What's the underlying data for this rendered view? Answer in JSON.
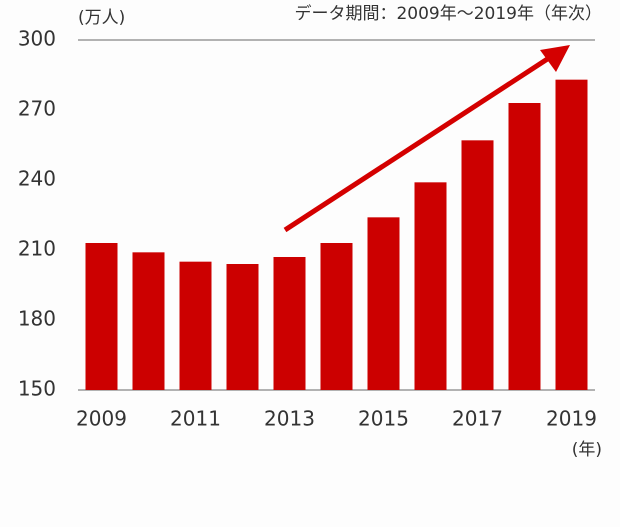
{
  "chart_data": {
    "type": "bar",
    "unit_label": "(万人)",
    "subtitle": "データ期間：2009年～2019年（年次）",
    "x_unit_label": "(年)",
    "categories": [
      "2009",
      null,
      "2011",
      null,
      "2013",
      null,
      "2015",
      null,
      "2017",
      null,
      "2019"
    ],
    "values": [
      213,
      209,
      205,
      204,
      207,
      213,
      224,
      239,
      257,
      273,
      283
    ],
    "color": "#cc0000",
    "ylim": [
      150,
      300
    ],
    "yticks": [
      150,
      180,
      210,
      240,
      270,
      300
    ],
    "grid": false
  }
}
